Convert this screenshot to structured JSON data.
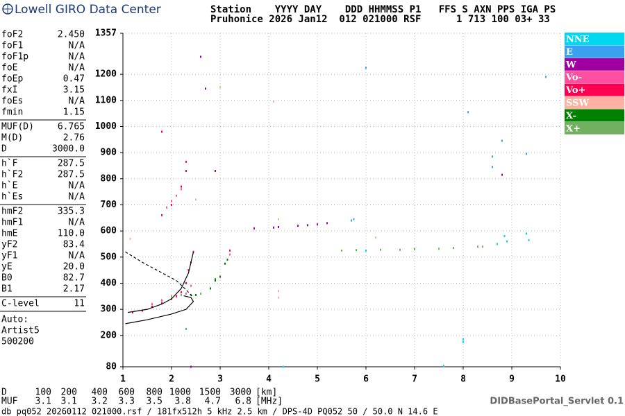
{
  "header": {
    "logo": "Lowell GIRO Data Center",
    "line1": "Station    YYYY DAY    DDD HHMMSS P1   FFS S AXN PPS IGA PS",
    "line2": "Pruhonice 2026 Jan12  012 021000 RSF      1 713 100 03+ 33"
  },
  "parameters": [
    [
      {
        "label": "foF2",
        "value": "2.450"
      },
      {
        "label": "foF1",
        "value": "N/A"
      },
      {
        "label": "foF1p",
        "value": "N/A"
      },
      {
        "label": "foE",
        "value": "N/A"
      },
      {
        "label": "foEp",
        "value": "0.47"
      },
      {
        "label": "fxI",
        "value": "3.15"
      },
      {
        "label": "foEs",
        "value": "N/A"
      },
      {
        "label": "fmin",
        "value": "1.15"
      }
    ],
    [
      {
        "label": "MUF(D)",
        "value": "6.765"
      },
      {
        "label": "M(D)",
        "value": "2.76"
      },
      {
        "label": "D",
        "value": "3000.0"
      }
    ],
    [
      {
        "label": "h`F",
        "value": "287.5"
      },
      {
        "label": "h`F2",
        "value": "287.5"
      },
      {
        "label": "h`E",
        "value": "N/A"
      },
      {
        "label": "h`Es",
        "value": "N/A"
      }
    ],
    [
      {
        "label": "hmF2",
        "value": "335.3"
      },
      {
        "label": "hmF1",
        "value": "N/A"
      },
      {
        "label": "hmE",
        "value": "110.0"
      },
      {
        "label": "yF2",
        "value": "83.4"
      },
      {
        "label": "yF1",
        "value": "N/A"
      },
      {
        "label": "yE",
        "value": "20.0"
      },
      {
        "label": "B0",
        "value": "82.7"
      },
      {
        "label": "B1",
        "value": "2.17"
      }
    ],
    [
      {
        "label": "C-level",
        "value": "11"
      }
    ]
  ],
  "auto": [
    "Auto:",
    "Artist5",
    "500200"
  ],
  "distance_row": {
    "label": "D",
    "values": [
      "100",
      "200",
      "400",
      "600",
      "800",
      "1000",
      "1500",
      "3000"
    ],
    "unit": "[km]"
  },
  "muf_row": {
    "label": "MUF",
    "values": [
      "3.1",
      "3.1",
      "3.2",
      "3.3",
      "3.5",
      "3.8",
      "4.7",
      "6.8"
    ],
    "unit": "[MHz]"
  },
  "footer": "db pq052 20260112 021000.rsf / 181fx512h 5 kHz 2.5 km / DPS-4D PQ052 50 / 50.0 N 14.6 E",
  "servlet": "DIDBasePortal_Servlet 0.1",
  "chart_data": {
    "type": "scatter",
    "grid": true,
    "xlim": [
      1,
      10
    ],
    "xticks": [
      1,
      2,
      3,
      4,
      5,
      6,
      7,
      8,
      9,
      10
    ],
    "ylim": [
      80,
      1357
    ],
    "yticks": [
      80,
      200,
      300,
      400,
      500,
      600,
      700,
      800,
      900,
      1000,
      1100,
      1200,
      1357
    ],
    "series": [
      {
        "name": "NNE",
        "color": "#00d8f0",
        "x": [
          8.0,
          8.0,
          7.6,
          8.85,
          8.9,
          9.3,
          9.35,
          8.7,
          4.3,
          6.0
        ],
        "values": [
          175,
          185,
          83,
          580,
          560,
          590,
          565,
          550,
          80,
          525
        ]
      },
      {
        "name": "E",
        "color": "#3aa0f0",
        "x": [
          6.0,
          8.1,
          8.8,
          8.6,
          8.6,
          9.3,
          9.7,
          5.7,
          5.75,
          2.3
        ],
        "values": [
          1225,
          1055,
          945,
          885,
          845,
          895,
          1190,
          640,
          645,
          225
        ]
      },
      {
        "name": "W",
        "color": "#a000a0",
        "x": [
          3.7,
          4.1,
          4.2,
          4.6,
          4.8,
          5.0,
          5.2,
          2.6,
          2.7,
          2.9,
          8.8,
          2.4
        ],
        "values": [
          610,
          613,
          615,
          620,
          622,
          625,
          630,
          1267,
          1145,
          830,
          815,
          80
        ]
      },
      {
        "name": "Vo-",
        "color": "#ff4fa0",
        "x": [
          1.9,
          2.0,
          2.1,
          2.2,
          2.3,
          2.4,
          3.2,
          1.6,
          1.8
        ],
        "values": [
          690,
          715,
          735,
          760,
          360,
          390,
          510,
          320,
          335
        ]
      },
      {
        "name": "Vo+",
        "color": "#ff0050",
        "x": [
          1.2,
          1.4,
          1.6,
          1.8,
          2.0,
          2.1,
          2.2,
          2.3,
          2.35,
          2.4,
          2.45,
          1.8,
          2.0,
          2.3,
          2.3,
          1.8,
          2.2,
          3.2
        ],
        "values": [
          288,
          295,
          310,
          325,
          340,
          350,
          365,
          400,
          450,
          480,
          520,
          660,
          700,
          830,
          865,
          980,
          770,
          525
        ]
      },
      {
        "name": "SSW",
        "color": "#ffb0a0",
        "x": [
          4.2,
          4.2,
          4.2,
          2.5,
          6.2,
          1.15,
          3.0,
          4.1
        ],
        "values": [
          645,
          370,
          345,
          720,
          575,
          570,
          1150,
          1095
        ]
      },
      {
        "name": "X-",
        "color": "#008000",
        "x": [
          2.5,
          2.8,
          2.9,
          3.0,
          3.1,
          3.15,
          2.9
        ],
        "values": [
          355,
          380,
          410,
          425,
          475,
          490,
          415
        ]
      },
      {
        "name": "X+",
        "color": "#70b060",
        "x": [
          2.2,
          2.4,
          5.5,
          5.8,
          6.3,
          6.7,
          7.0,
          7.5,
          7.8,
          8.3,
          8.4,
          2.6,
          2.0
        ],
        "values": [
          355,
          355,
          525,
          527,
          528,
          528,
          530,
          532,
          535,
          540,
          540,
          360,
          350
        ]
      }
    ],
    "curves": [
      {
        "style": "solid",
        "x": [
          1.1,
          1.5,
          1.8,
          2.0,
          2.2,
          2.35,
          2.45
        ],
        "values": [
          288,
          300,
          320,
          340,
          380,
          440,
          520
        ]
      },
      {
        "style": "solid",
        "x": [
          1.05,
          1.5,
          2.0,
          2.3,
          2.45,
          2.4,
          2.25
        ],
        "values": [
          245,
          260,
          282,
          300,
          330,
          345,
          352
        ]
      },
      {
        "style": "dashed",
        "x": [
          1.05,
          1.4,
          1.8,
          2.1,
          2.3,
          2.45
        ],
        "values": [
          520,
          480,
          440,
          410,
          375,
          345
        ]
      }
    ]
  }
}
